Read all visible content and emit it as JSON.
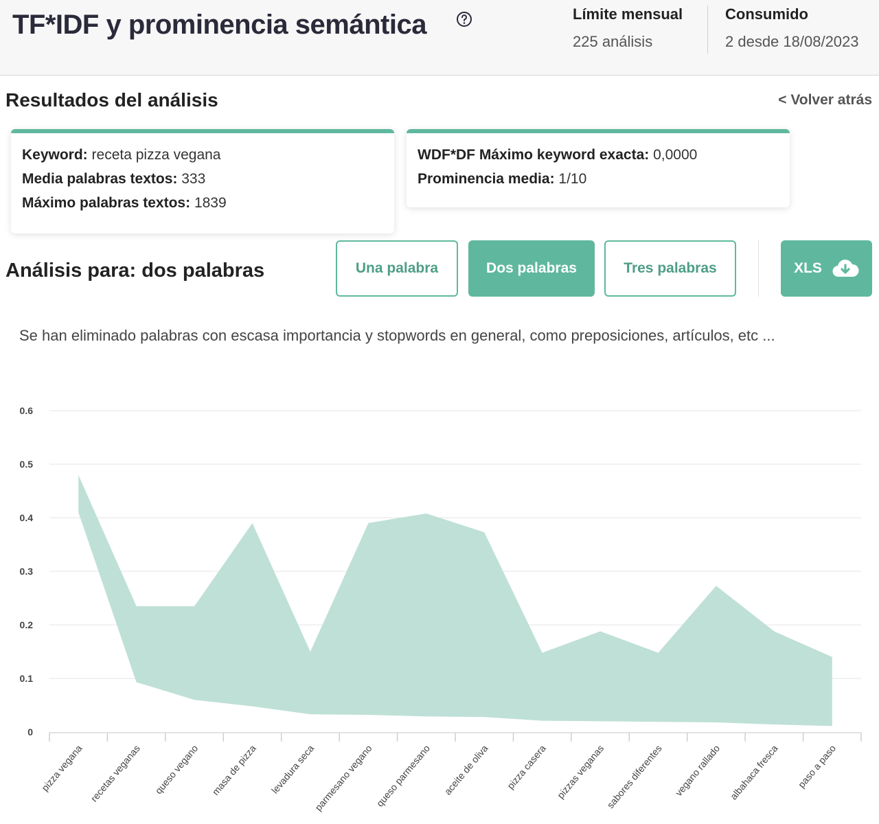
{
  "header": {
    "title": "TF*IDF y prominencia semántica",
    "help_icon": "question-circle-icon",
    "limit_label": "Límite mensual",
    "limit_value": "225 análisis",
    "used_label": "Consumido",
    "used_value": "2 desde 18/08/2023"
  },
  "results": {
    "title": "Resultados del análisis",
    "back_label": "< Volver atrás"
  },
  "summary": {
    "keyword_label": "Keyword:",
    "keyword_value": "receta pizza vegana",
    "avg_words_label": "Media palabras textos:",
    "avg_words_value": "333",
    "max_words_label": "Máximo palabras textos:",
    "max_words_value": "1839",
    "wdf_label": "WDF*DF Máximo keyword exacta:",
    "wdf_value": "0,0000",
    "prominence_label": "Prominencia media:",
    "prominence_value": "1/10"
  },
  "analysis": {
    "title": "Análisis para: dos palabras",
    "buttons": {
      "una": "Una palabra",
      "dos": "Dos palabras",
      "tres": "Tres palabras",
      "xls": "XLS"
    },
    "active": "dos",
    "download_icon": "cloud-download-icon",
    "note": "Se han eliminado palabras con escasa importancia y stopwords en general, como preposiciones, artículos, etc ..."
  },
  "colors": {
    "accent": "#5fb89e",
    "area_fill": "#bfe0d6",
    "grid": "#e6e6e6"
  },
  "chart_data": {
    "type": "area",
    "categories": [
      "pizza vegana",
      "recetas veganas",
      "queso vegano",
      "masa de pizza",
      "levadura seca",
      "parmesano vegano",
      "queso parmesano",
      "aceite de oliva",
      "pizza casera",
      "pizzas veganas",
      "sabores diferentes",
      "vegano rallado",
      "albahaca fresca",
      "paso a paso"
    ],
    "series": [
      {
        "values": [
          0.48,
          0.235,
          0.235,
          0.39,
          0.15,
          0.39,
          0.408,
          0.373,
          0.148,
          0.188,
          0.148,
          0.273,
          0.188,
          0.14
        ]
      },
      {
        "values": [
          0.41,
          0.093,
          0.06,
          0.048,
          0.033,
          0.032,
          0.029,
          0.028,
          0.021,
          0.02,
          0.019,
          0.018,
          0.014,
          0.011
        ]
      }
    ],
    "yticks": [
      0,
      0.1,
      0.2,
      0.3,
      0.4,
      0.5,
      0.6
    ],
    "ytick_labels": [
      "0",
      "0.1",
      "0.2",
      "0.3",
      "0.4",
      "0.5",
      "0.6"
    ],
    "ylim": [
      0,
      0.6
    ],
    "title": "",
    "xlabel": "",
    "ylabel": "",
    "grid": true,
    "legend": "none"
  }
}
